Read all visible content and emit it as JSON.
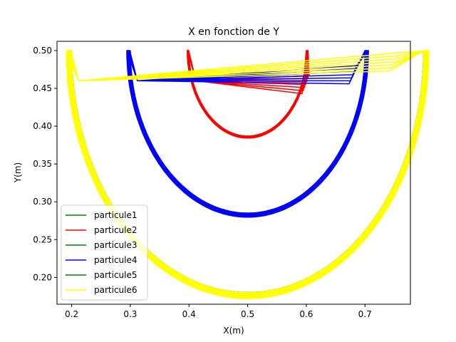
{
  "chart_data": {
    "type": "line",
    "title": "X en fonction de Y",
    "xlabel": "X(m)",
    "ylabel": "Y(m)",
    "xlim": [
      0.175,
      0.7775
    ],
    "ylim": [
      0.1645,
      0.5122
    ],
    "x_ticks": [
      "0.2",
      "0.3",
      "0.4",
      "0.5",
      "0.6",
      "0.7"
    ],
    "y_ticks": [
      "0.20",
      "0.25",
      "0.30",
      "0.35",
      "0.40",
      "0.45",
      "0.50"
    ],
    "legend_position": "lower-left",
    "grid": false,
    "series": [
      {
        "name": "particule1",
        "color": "#008000",
        "cx": 0.5,
        "rx": 0.3,
        "bottom": 0.18,
        "top": 0.5,
        "x": [],
        "y": []
      },
      {
        "name": "particule2",
        "color": "#ff0000",
        "cx": 0.5,
        "rx": 0.1,
        "bottom": 0.387,
        "top": 0.5,
        "max_y_x": 0.605,
        "max_y": 0.467,
        "x": [],
        "y": []
      },
      {
        "name": "particule3",
        "color": "#008000",
        "cx": 0.5,
        "rx": 0.2,
        "bottom": 0.285,
        "top": 0.5,
        "x": [],
        "y": []
      },
      {
        "name": "particule4",
        "color": "#0000ff",
        "cx": 0.5,
        "rx": 0.2,
        "bottom": 0.285,
        "top": 0.5,
        "max_y_x": 0.685,
        "max_y": 0.48,
        "x": [],
        "y": []
      },
      {
        "name": "particule5",
        "color": "#008000",
        "cx": 0.5,
        "rx": 0.3,
        "bottom": 0.18,
        "top": 0.5,
        "x": [],
        "y": []
      },
      {
        "name": "particule6",
        "color": "#ffff00",
        "cx": 0.5,
        "rx": 0.3,
        "bottom": 0.18,
        "top": 0.5,
        "max_y_x": 0.755,
        "max_y": 0.497,
        "x": [],
        "y": []
      }
    ]
  }
}
